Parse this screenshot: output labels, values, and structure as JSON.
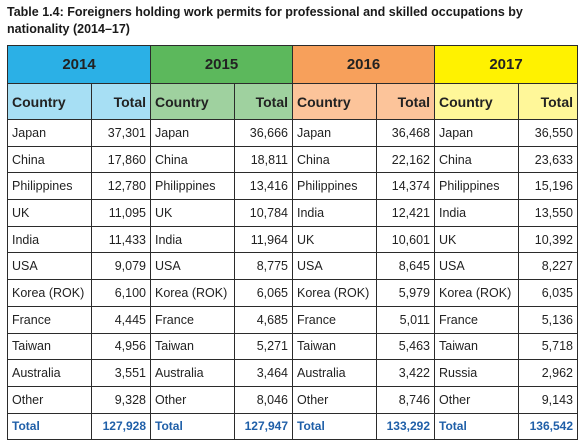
{
  "caption": "Table 1.4: Foreigners holding work permits for professional and skilled occupations by nationality (2014–17)",
  "headers": {
    "country": "Country",
    "total": "Total"
  },
  "years": [
    {
      "year": "2014",
      "rows": [
        {
          "country": "Japan",
          "total": "37,301"
        },
        {
          "country": "China",
          "total": "17,860"
        },
        {
          "country": "Philippines",
          "total": "12,780"
        },
        {
          "country": "UK",
          "total": "11,095"
        },
        {
          "country": "India",
          "total": "11,433"
        },
        {
          "country": "USA",
          "total": "9,079"
        },
        {
          "country": "Korea (ROK)",
          "total": "6,100"
        },
        {
          "country": "France",
          "total": "4,445"
        },
        {
          "country": "Taiwan",
          "total": "4,956"
        },
        {
          "country": "Australia",
          "total": "3,551"
        },
        {
          "country": "Other",
          "total": "9,328"
        }
      ],
      "total_label": "Total",
      "total_value": "127,928"
    },
    {
      "year": "2015",
      "rows": [
        {
          "country": "Japan",
          "total": "36,666"
        },
        {
          "country": "China",
          "total": "18,811"
        },
        {
          "country": "Philippines",
          "total": "13,416"
        },
        {
          "country": "UK",
          "total": "10,784"
        },
        {
          "country": "India",
          "total": "11,964"
        },
        {
          "country": "USA",
          "total": "8,775"
        },
        {
          "country": "Korea (ROK)",
          "total": "6,065"
        },
        {
          "country": "France",
          "total": "4,685"
        },
        {
          "country": "Taiwan",
          "total": "5,271"
        },
        {
          "country": "Australia",
          "total": "3,464"
        },
        {
          "country": "Other",
          "total": "8,046"
        }
      ],
      "total_label": "Total",
      "total_value": "127,947"
    },
    {
      "year": "2016",
      "rows": [
        {
          "country": "Japan",
          "total": "36,468"
        },
        {
          "country": "China",
          "total": "22,162"
        },
        {
          "country": "Philippines",
          "total": "14,374"
        },
        {
          "country": "India",
          "total": "12,421"
        },
        {
          "country": "UK",
          "total": "10,601"
        },
        {
          "country": "USA",
          "total": "8,645"
        },
        {
          "country": "Korea (ROK)",
          "total": "5,979"
        },
        {
          "country": "France",
          "total": "5,011"
        },
        {
          "country": "Taiwan",
          "total": "5,463"
        },
        {
          "country": "Australia",
          "total": "3,422"
        },
        {
          "country": "Other",
          "total": "8,746"
        }
      ],
      "total_label": "Total",
      "total_value": "133,292"
    },
    {
      "year": "2017",
      "rows": [
        {
          "country": "Japan",
          "total": "36,550"
        },
        {
          "country": "China",
          "total": "23,633"
        },
        {
          "country": "Philippines",
          "total": "15,196"
        },
        {
          "country": "India",
          "total": "13,550"
        },
        {
          "country": "UK",
          "total": "10,392"
        },
        {
          "country": "USA",
          "total": "8,227"
        },
        {
          "country": "Korea (ROK)",
          "total": "6,035"
        },
        {
          "country": "France",
          "total": "5,136"
        },
        {
          "country": "Taiwan",
          "total": "5,718"
        },
        {
          "country": "Russia",
          "total": "2,962"
        },
        {
          "country": "Other",
          "total": "9,143"
        }
      ],
      "total_label": "Total",
      "total_value": "136,542"
    }
  ]
}
